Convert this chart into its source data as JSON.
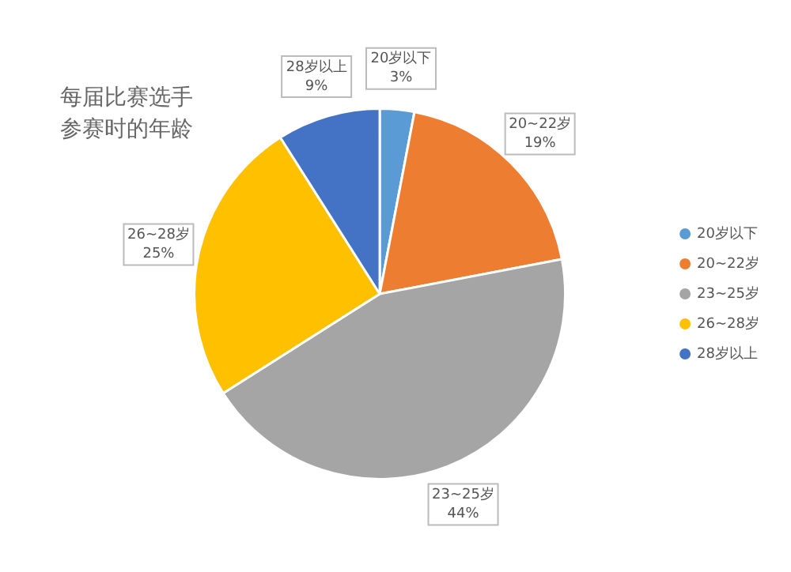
{
  "chart_data": {
    "type": "pie",
    "title": "每届比赛选手参赛时的年龄",
    "categories": [
      "20岁以下",
      "20~22岁",
      "23~25岁",
      "26~28岁",
      "28岁以上"
    ],
    "values": [
      3,
      19,
      44,
      25,
      9
    ],
    "value_labels": [
      "3%",
      "19%",
      "44%",
      "25%",
      "9%"
    ],
    "colors": [
      "#5b9bd5",
      "#ed7d31",
      "#a5a5a5",
      "#ffc000",
      "#4472c4"
    ],
    "legend": "right"
  }
}
